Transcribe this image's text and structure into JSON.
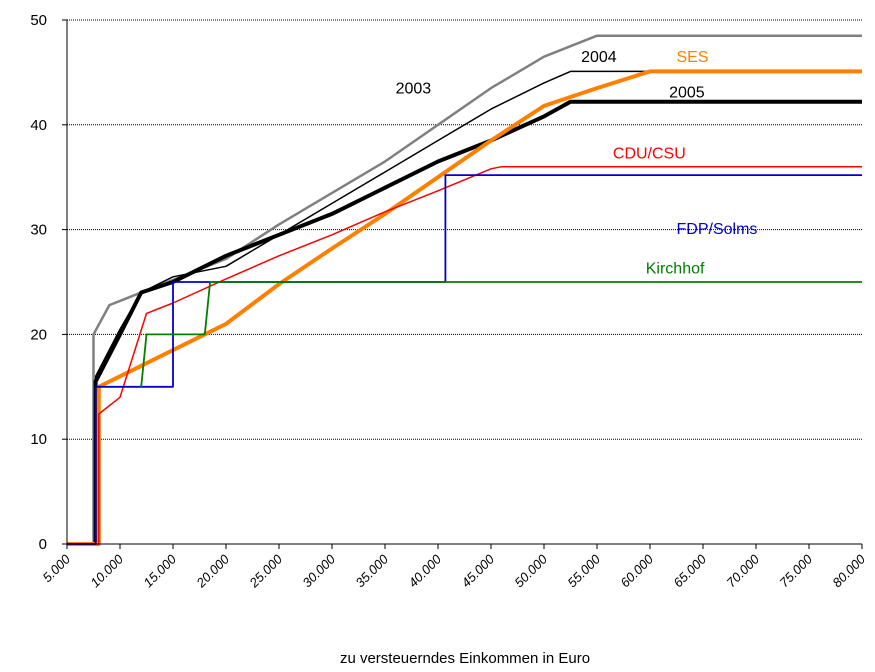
{
  "chart_data": {
    "type": "line",
    "title": "",
    "xlabel": "zu versteuerndes Einkommen in Euro",
    "ylabel": "",
    "xlim": [
      5000,
      80000
    ],
    "ylim": [
      0,
      50
    ],
    "grid": true,
    "x_ticks": [
      5000,
      10000,
      15000,
      20000,
      25000,
      30000,
      35000,
      40000,
      45000,
      50000,
      55000,
      60000,
      65000,
      70000,
      75000,
      80000
    ],
    "x_tick_labels": [
      "5.000",
      "10.000",
      "15.000",
      "20.000",
      "25.000",
      "30.000",
      "35.000",
      "40.000",
      "45.000",
      "50.000",
      "55.000",
      "60.000",
      "65.000",
      "70.000",
      "75.000",
      "80.000"
    ],
    "y_ticks": [
      0,
      10,
      20,
      30,
      40,
      50
    ],
    "y_tick_labels": [
      "0",
      "10",
      "20",
      "30",
      "40",
      "50"
    ],
    "series": [
      {
        "name": "2003",
        "color": "#808080",
        "width": 2.5,
        "points": [
          [
            5000,
            0
          ],
          [
            7500,
            0
          ],
          [
            7500,
            20
          ],
          [
            9000,
            22.8
          ],
          [
            12000,
            24
          ],
          [
            15000,
            25.2
          ],
          [
            20000,
            27.2
          ],
          [
            25000,
            30.5
          ],
          [
            30000,
            33.5
          ],
          [
            35000,
            36.5
          ],
          [
            40000,
            40
          ],
          [
            45000,
            43.5
          ],
          [
            50000,
            46.5
          ],
          [
            55000,
            48.5
          ],
          [
            80000,
            48.5
          ]
        ]
      },
      {
        "name": "2004",
        "color": "#000000",
        "width": 1.5,
        "points": [
          [
            5000,
            0
          ],
          [
            7700,
            0
          ],
          [
            7700,
            16
          ],
          [
            10000,
            20.5
          ],
          [
            12000,
            24
          ],
          [
            15000,
            25.5
          ],
          [
            20000,
            26.5
          ],
          [
            25000,
            29.5
          ],
          [
            30000,
            32.5
          ],
          [
            35000,
            35.5
          ],
          [
            40000,
            38.5
          ],
          [
            45000,
            41.5
          ],
          [
            50000,
            44
          ],
          [
            52500,
            45.1
          ],
          [
            80000,
            45.1
          ]
        ]
      },
      {
        "name": "2005",
        "color": "#000000",
        "width": 4,
        "points": [
          [
            5000,
            0
          ],
          [
            7700,
            0
          ],
          [
            7700,
            15.5
          ],
          [
            10000,
            20
          ],
          [
            12000,
            24
          ],
          [
            15000,
            25
          ],
          [
            20000,
            27.5
          ],
          [
            25000,
            29.5
          ],
          [
            30000,
            31.5
          ],
          [
            35000,
            34
          ],
          [
            40000,
            36.5
          ],
          [
            45000,
            38.5
          ],
          [
            50000,
            40.8
          ],
          [
            52500,
            42.2
          ],
          [
            80000,
            42.2
          ]
        ]
      },
      {
        "name": "SES",
        "color": "#FF8000",
        "width": 4,
        "points": [
          [
            5000,
            0
          ],
          [
            8000,
            0
          ],
          [
            8000,
            15
          ],
          [
            10000,
            16
          ],
          [
            15000,
            18.5
          ],
          [
            20000,
            21
          ],
          [
            25000,
            24.8
          ],
          [
            30000,
            28.2
          ],
          [
            35000,
            31.5
          ],
          [
            40000,
            35
          ],
          [
            45000,
            38.5
          ],
          [
            50000,
            41.8
          ],
          [
            55000,
            43.5
          ],
          [
            60000,
            45.1
          ],
          [
            80000,
            45.1
          ]
        ]
      },
      {
        "name": "CDU/CSU",
        "color": "#FF0000",
        "width": 1.5,
        "points": [
          [
            5000,
            0
          ],
          [
            8000,
            0
          ],
          [
            8000,
            12.4
          ],
          [
            10000,
            14
          ],
          [
            12500,
            22
          ],
          [
            15000,
            23
          ],
          [
            20000,
            25.3
          ],
          [
            25000,
            27.5
          ],
          [
            30000,
            29.5
          ],
          [
            35000,
            31.7
          ],
          [
            40000,
            33.7
          ],
          [
            45000,
            35.8
          ],
          [
            46000,
            36
          ],
          [
            80000,
            36
          ]
        ]
      },
      {
        "name": "FDP/Solms",
        "color": "#0000CC",
        "width": 1.8,
        "points": [
          [
            5000,
            0
          ],
          [
            7700,
            0
          ],
          [
            7700,
            15
          ],
          [
            15000,
            15
          ],
          [
            15000,
            25
          ],
          [
            40700,
            25
          ],
          [
            40700,
            35.2
          ],
          [
            80000,
            35.2
          ]
        ]
      },
      {
        "name": "Kirchhof",
        "color": "#008000",
        "width": 1.8,
        "points": [
          [
            12000,
            15
          ],
          [
            12500,
            20
          ],
          [
            18000,
            20
          ],
          [
            18500,
            25
          ],
          [
            80000,
            25
          ]
        ]
      }
    ],
    "annotations": [
      {
        "text": "2003",
        "x": 36000,
        "y": 43,
        "color": "#000000"
      },
      {
        "text": "2004",
        "x": 53500,
        "y": 46,
        "color": "#000000"
      },
      {
        "text": "SES",
        "x": 62500,
        "y": 46,
        "color": "#FF8000"
      },
      {
        "text": "2005",
        "x": 61800,
        "y": 42.6,
        "color": "#000000"
      },
      {
        "text": "CDU/CSU",
        "x": 56500,
        "y": 36.8,
        "color": "#FF0000"
      },
      {
        "text": "FDP/Solms",
        "x": 62500,
        "y": 29.6,
        "color": "#0000CC"
      },
      {
        "text": "Kirchhof",
        "x": 59600,
        "y": 25.8,
        "color": "#008000"
      }
    ]
  }
}
